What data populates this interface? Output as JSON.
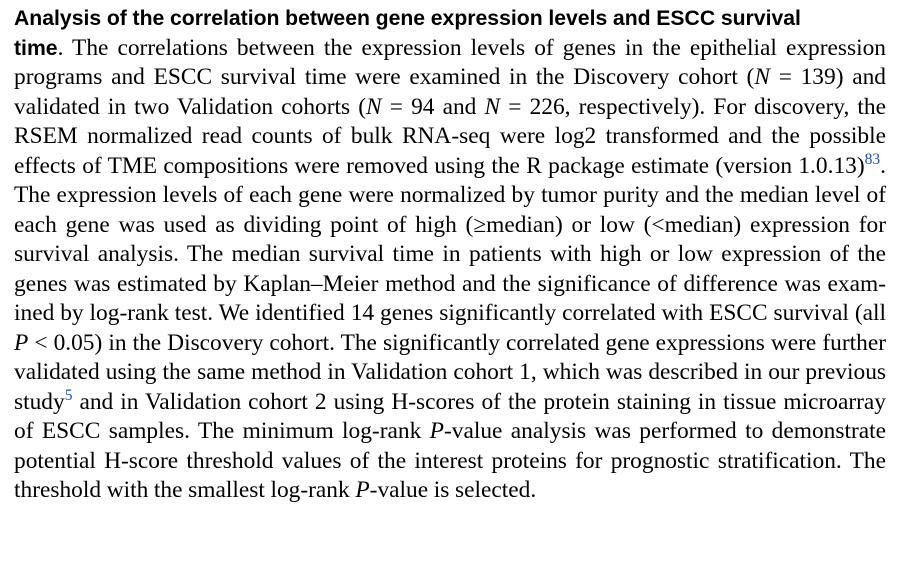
{
  "heading_line1": "Analysis of the correlation between gene expression levels and ESCC survival",
  "heading_line2": "time",
  "body": {
    "s1": ". The correlations between the expression levels of genes in the epithelial expression programs and ESCC survival time were examined in the Discovery cohort (",
    "n_var": "N",
    "s2": " = 139) and validated in two Validation cohorts (",
    "s3": " = 94 and ",
    "s4": " = 226, respectively). For discovery, the RSEM normalized read counts of bulk RNA-seq were log2 transformed and the possible effects of TME compositions were removed using the R package estimate (version 1.0.13)",
    "ref1": "83",
    "s5": ". The expression levels of each gene were normalized by tumor purity and the median level of each gene was used as dividing point of high (≥median) or low (<median) expression for survival analysis. The median survival time in patients with high or low expression of the genes was estimated by Kaplan–Meier method and the significance of difference was exam-",
    "s6": "ined by log-rank test. We identified 14 genes significantly correlated with ESCC survival (all ",
    "p_var": "P",
    "s7": " < 0.05) in the Discovery cohort. The significantly correlated gene expressions were further validated using the same method in Validation cohort 1, which was described in our previous study",
    "ref2": "5",
    "s8": " and in Validation cohort 2 using H-scores of the protein staining in tissue microarray of ESCC samples. The minimum log-rank ",
    "s9": "-value analysis was performed to demonstrate potential H-score threshold values of the interest proteins for prognostic stratification. The threshold with the smallest log-rank ",
    "s10": "-value is selected."
  },
  "colors": {
    "text": "#000000",
    "reference_link": "#1a4fd0"
  }
}
